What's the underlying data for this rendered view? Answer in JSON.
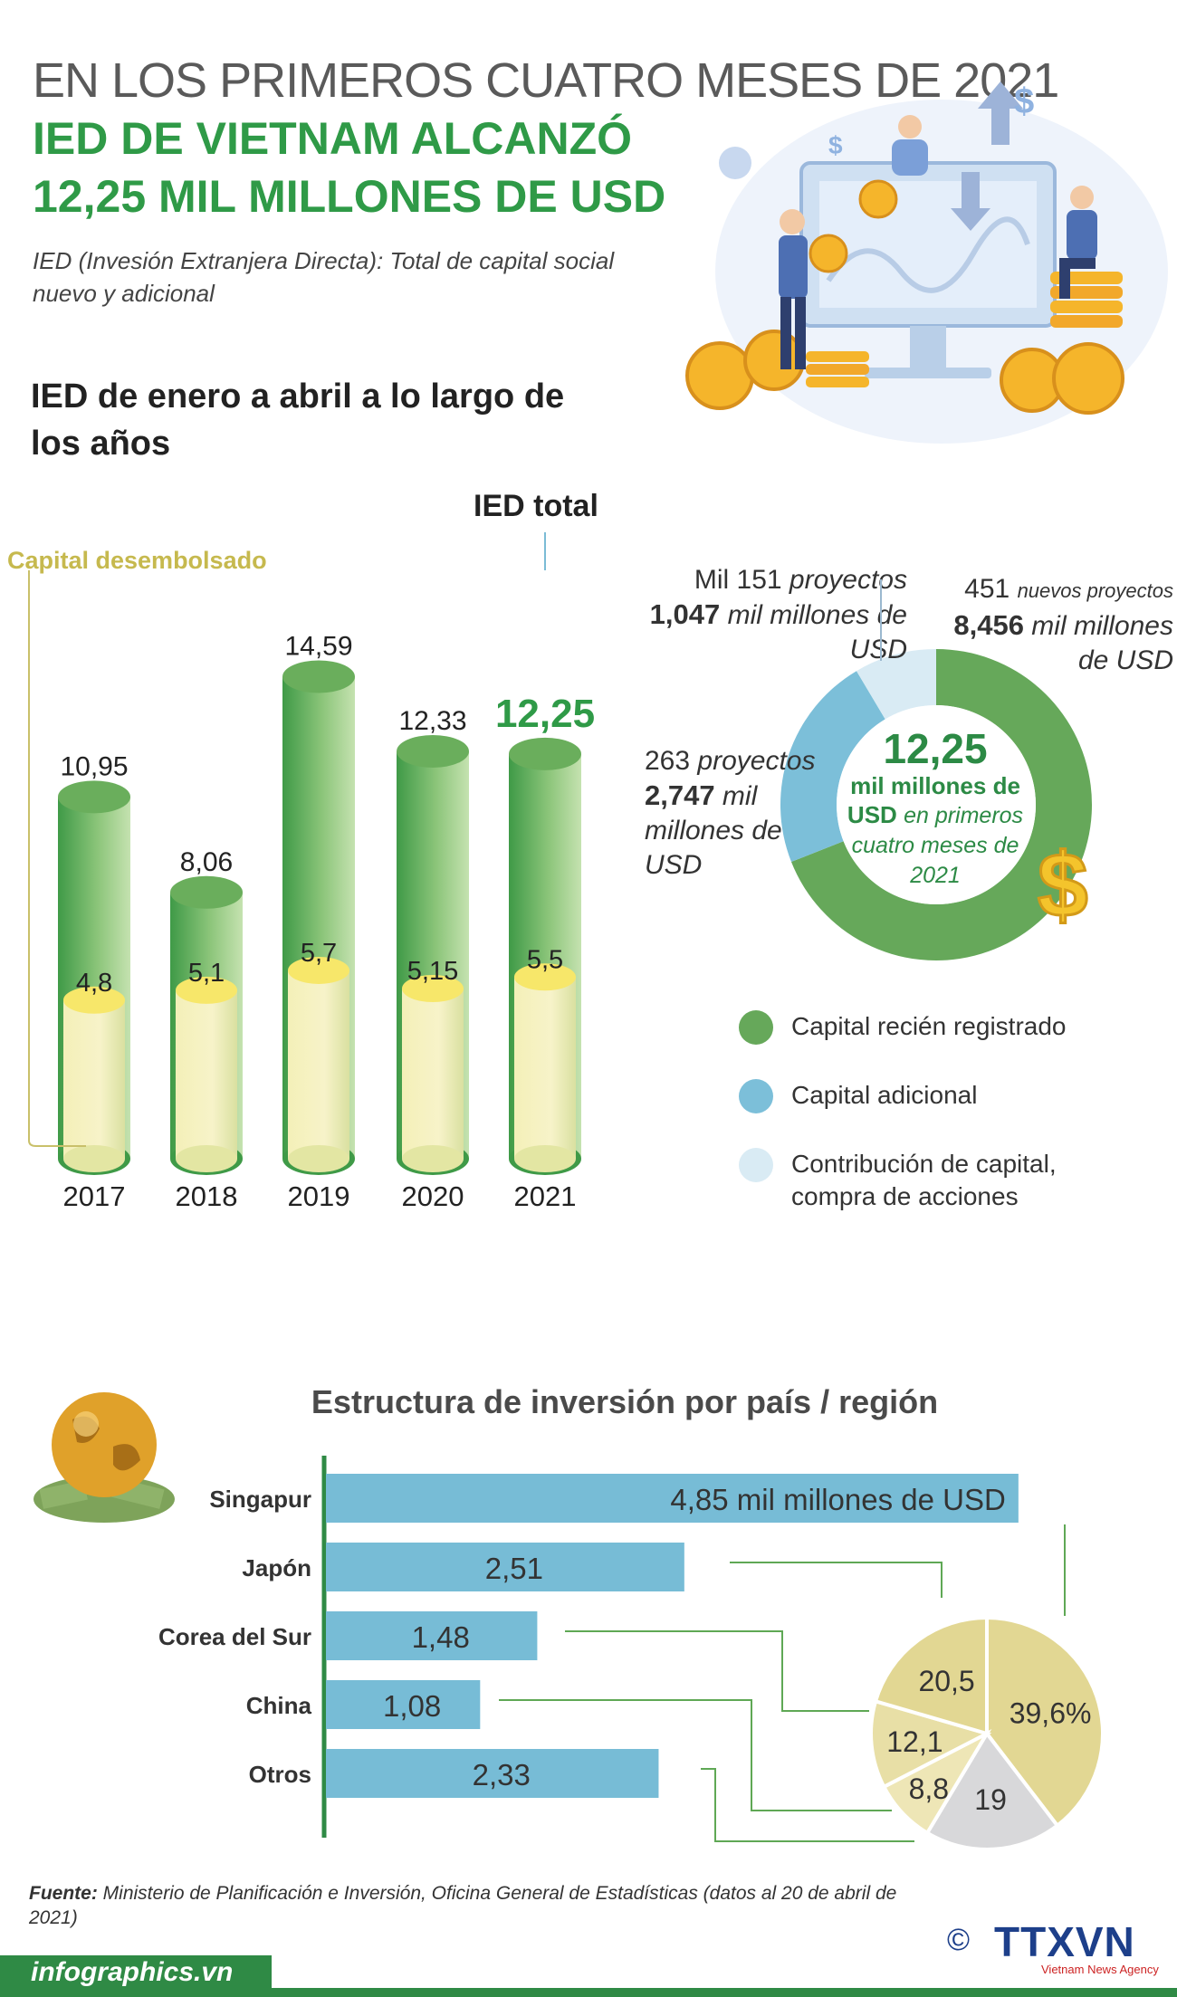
{
  "header": {
    "line1": "EN LOS PRIMEROS CUATRO MESES DE 2021",
    "line2": "IED DE VIETNAM ALCANZÓ",
    "line3": "12,25 MIL MILLONES DE USD",
    "subtitle": "IED (Invesión Extranjera Directa): Total de capital social nuevo y adicional"
  },
  "section1": {
    "title": "IED de enero a abril a lo largo de los años"
  },
  "chart_data": [
    {
      "type": "bar",
      "title": "IED de enero a abril a lo largo de los años",
      "categories": [
        "2017",
        "2018",
        "2019",
        "2020",
        "2021"
      ],
      "series": [
        {
          "name": "IED total",
          "values": [
            10.95,
            8.06,
            14.59,
            12.33,
            12.25
          ],
          "labels": [
            "10,95",
            "8,06",
            "14,59",
            "12,33",
            "12,25"
          ],
          "color": "#5fa855"
        },
        {
          "name": "Capital desembolsado",
          "values": [
            4.8,
            5.1,
            5.7,
            5.15,
            5.5
          ],
          "labels": [
            "4,8",
            "5,1",
            "5,7",
            "5,15",
            "5,5"
          ],
          "color": "#f2ec9a"
        }
      ],
      "annotations": {
        "total_label": "IED total",
        "disbursed_label": "Capital desembolsado"
      }
    },
    {
      "type": "pie",
      "title": "12,25 mil millones de USD en primeros cuatro meses de 2021",
      "series": [
        {
          "name": "Capital recién registrado",
          "value": 8.456,
          "projects": "451",
          "color": "#66a85a"
        },
        {
          "name": "Capital adicional",
          "value": 2.747,
          "projects": "263",
          "color": "#7cbfd9"
        },
        {
          "name": "Contribución de capital, compra de acciones",
          "value": 1.047,
          "projects": "Mil 151",
          "color": "#d9ebf4"
        }
      ],
      "center": {
        "value": "12,25",
        "unit": "mil millones de",
        "unit2": "USD",
        "rest": "en primeros cuatro meses de 2021"
      },
      "labels": {
        "new": {
          "count": "451",
          "count_text": "nuevos proyectos",
          "value": "8,456",
          "value_text": "mil millones de USD"
        },
        "additional": {
          "count": "263",
          "count_text": "proyectos",
          "value": "2,747",
          "value_text": "mil millones de USD"
        },
        "shares": {
          "count": "Mil 151",
          "count_text": "proyectos",
          "value": "1,047",
          "value_text": "mil millones de USD"
        }
      },
      "legend": [
        "Capital recién registrado",
        "Capital adicional",
        "Contribución de capital, compra de acciones"
      ]
    },
    {
      "type": "bar",
      "orientation": "horizontal",
      "title": "Estructura de inversión por país / región",
      "categories": [
        "Singapur",
        "Japón",
        "Corea del Sur",
        "China",
        "Otros"
      ],
      "values": [
        4.85,
        2.51,
        1.48,
        1.08,
        2.33
      ],
      "labels": [
        "4,85 mil millones de USD",
        "2,51",
        "1,48",
        "1,08",
        "2,33"
      ],
      "color": "#77bcd6"
    },
    {
      "type": "pie",
      "title": "Estructura de inversión por país / región (%)",
      "categories": [
        "Singapur",
        "Japón",
        "Corea del Sur",
        "China",
        "Otros"
      ],
      "values": [
        39.6,
        20.5,
        12.1,
        8.8,
        19
      ],
      "labels": [
        "39,6%",
        "20,5",
        "12,1",
        "8,8",
        "19"
      ],
      "colors": [
        "#e2d793",
        "#e2d793",
        "#e8dfa6",
        "#eee6b6",
        "#d8d8da"
      ]
    }
  ],
  "section2": {
    "title": "Estructura de inversión por país / región"
  },
  "source": {
    "label": "Fuente:",
    "text": "Ministerio de Planificación e Inversión, Oficina General de Estadísticas (datos al 20 de abril de 2021)"
  },
  "footer": {
    "site": "infographics.vn",
    "copyright": "©",
    "logo": "TTXVN",
    "agency": "Vietnam News Agency"
  }
}
